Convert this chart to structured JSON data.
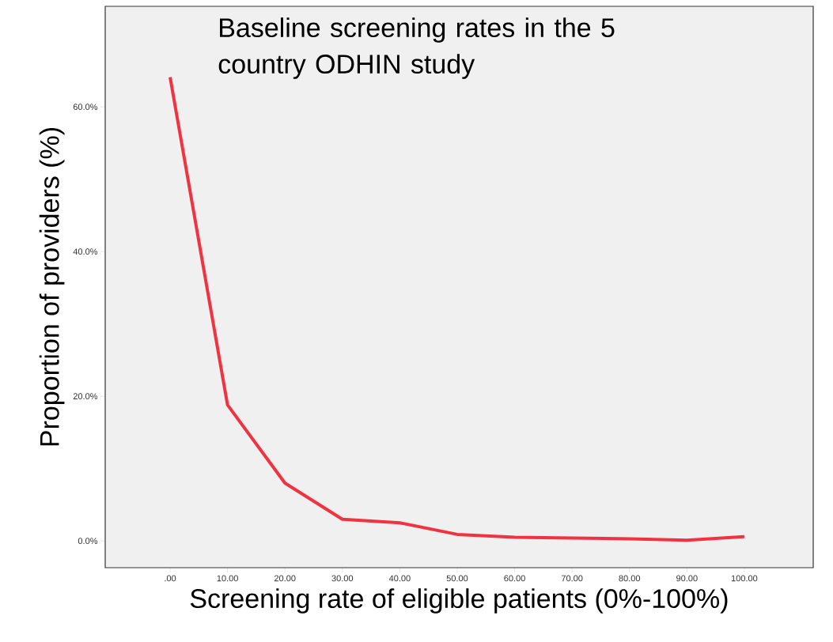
{
  "chart_data": {
    "type": "line",
    "xlabel": "Screening rate of eligible patients (0%-100%)",
    "ylabel": "Proportion of providers (%)",
    "annotations": [
      "Baseline screening rates in the 5 country ODHIN study"
    ],
    "x": [
      0,
      10,
      20,
      30,
      40,
      50,
      60,
      70,
      80,
      90,
      100
    ],
    "series": [
      {
        "color": "#ef3340",
        "values": [
          64.1,
          18.8,
          8.0,
          3.0,
          2.5,
          0.9,
          0.5,
          0.4,
          0.3,
          0.1,
          0.6
        ]
      }
    ],
    "xlim": [
      -11.3,
      112
    ],
    "ylim": [
      -3.7,
      73.9
    ],
    "xticks": [
      {
        "value": 0,
        "label": ".00"
      },
      {
        "value": 10,
        "label": "10.00"
      },
      {
        "value": 20,
        "label": "20.00"
      },
      {
        "value": 30,
        "label": "30.00"
      },
      {
        "value": 40,
        "label": "40.00"
      },
      {
        "value": 50,
        "label": "50.00"
      },
      {
        "value": 60,
        "label": "60.00"
      },
      {
        "value": 70,
        "label": "70.00"
      },
      {
        "value": 80,
        "label": "80.00"
      },
      {
        "value": 90,
        "label": "90.00"
      },
      {
        "value": 100,
        "label": "100.00"
      }
    ],
    "yticks": [
      {
        "value": 0,
        "label": "0.0%"
      },
      {
        "value": 20,
        "label": "20.0%"
      },
      {
        "value": 40,
        "label": "40.0%"
      },
      {
        "value": 60,
        "label": "60.0%"
      }
    ],
    "grid": false,
    "marker": "none",
    "line_style": "solid"
  }
}
